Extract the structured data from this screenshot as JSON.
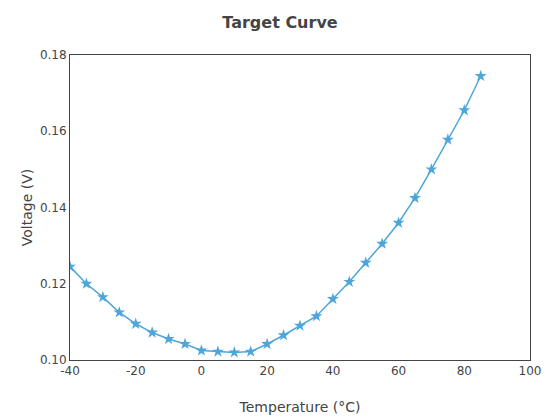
{
  "chart_data": {
    "type": "line",
    "title": "Target Curve",
    "xlabel": "Temperature (°C)",
    "ylabel": "Voltage (V)",
    "x": [
      -40,
      -35,
      -30,
      -25,
      -20,
      -15,
      -10,
      -5,
      0,
      5,
      10,
      15,
      20,
      25,
      30,
      35,
      40,
      45,
      50,
      55,
      60,
      65,
      70,
      75,
      80,
      85
    ],
    "values": [
      0.1245,
      0.12,
      0.1165,
      0.1125,
      0.1095,
      0.1072,
      0.1055,
      0.1042,
      0.1025,
      0.1022,
      0.102,
      0.1022,
      0.1042,
      0.1065,
      0.109,
      0.1115,
      0.116,
      0.1205,
      0.1255,
      0.1305,
      0.136,
      0.1425,
      0.15,
      0.1578,
      0.1655,
      0.1745
    ],
    "color": "#4da6d9",
    "marker": "star",
    "xlim": [
      -40,
      100
    ],
    "xticks": [
      -40,
      -20,
      0,
      20,
      40,
      60,
      80,
      100
    ],
    "ylim": [
      0.1,
      0.18
    ],
    "yticks": [
      {
        "value": 0.1,
        "label": "0.10"
      },
      0.12,
      0.14,
      0.16,
      0.18
    ],
    "grid": false
  }
}
